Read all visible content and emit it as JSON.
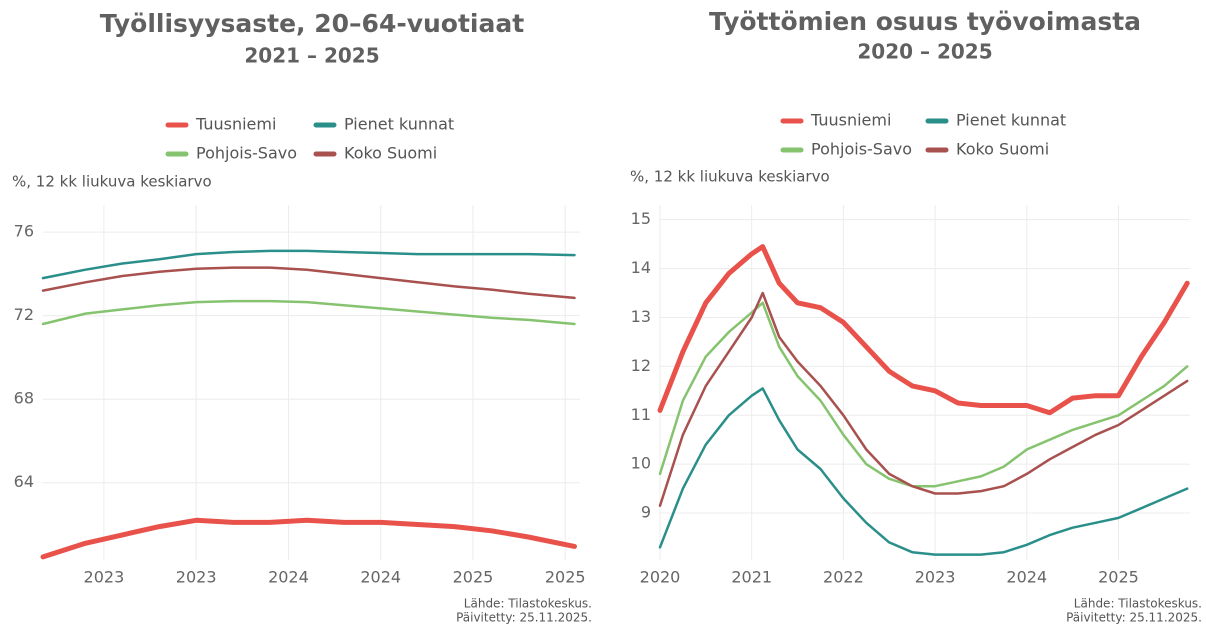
{
  "chart_data": [
    {
      "type": "line",
      "title": "Työllisyysaste, 20–64-vuotiaat",
      "subtitle": "2021 – 2025",
      "y_label": "%, 12 kk liukuva keskiarvo",
      "source": [
        "Lähde: Tilastokeskus.",
        "Päivitetty: 25.11.2025."
      ],
      "x": [
        2022.67,
        2022.9,
        2023.1,
        2023.3,
        2023.5,
        2023.7,
        2023.9,
        2024.1,
        2024.3,
        2024.5,
        2024.7,
        2024.9,
        2025.1,
        2025.3,
        2025.55
      ],
      "xlim": [
        2022.67,
        2025.58
      ],
      "xticks": [
        {
          "value": 2023,
          "label": "2023"
        },
        {
          "value": 2023.5,
          "label": "2023"
        },
        {
          "value": 2024,
          "label": "2024"
        },
        {
          "value": 2024.5,
          "label": "2024"
        },
        {
          "value": 2025,
          "label": "2025"
        },
        {
          "value": 2025.5,
          "label": "2025"
        }
      ],
      "ylim": [
        60.3,
        77.3
      ],
      "yticks": [
        64,
        68,
        72,
        76
      ],
      "grid": true,
      "series": [
        {
          "name": "Tuusniemi",
          "color": "#e8524b",
          "line_width": 5,
          "values": [
            60.45,
            61.1,
            61.5,
            61.9,
            62.2,
            62.1,
            62.1,
            62.2,
            62.1,
            62.1,
            62.0,
            61.9,
            61.7,
            61.4,
            60.95
          ]
        },
        {
          "name": "Pienet kunnat",
          "color": "#2a8f8a",
          "line_width": 2.5,
          "values": [
            73.8,
            74.2,
            74.5,
            74.7,
            74.95,
            75.05,
            75.1,
            75.1,
            75.05,
            75.0,
            74.95,
            74.95,
            74.95,
            74.95,
            74.9
          ]
        },
        {
          "name": "Pohjois-Savo",
          "color": "#86c36f",
          "line_width": 2.5,
          "values": [
            71.6,
            72.1,
            72.3,
            72.5,
            72.65,
            72.7,
            72.7,
            72.65,
            72.5,
            72.35,
            72.2,
            72.05,
            71.9,
            71.8,
            71.6
          ]
        },
        {
          "name": "Koko Suomi",
          "color": "#a8514f",
          "line_width": 2.5,
          "values": [
            73.2,
            73.6,
            73.9,
            74.1,
            74.25,
            74.3,
            74.3,
            74.2,
            74.0,
            73.8,
            73.6,
            73.4,
            73.25,
            73.05,
            72.85
          ]
        }
      ]
    },
    {
      "type": "line",
      "title": "Työttömien osuus työvoimasta",
      "subtitle": "2020 – 2025",
      "y_label": "%, 12 kk liukuva keskiarvo",
      "source": [
        "Lähde: Tilastokeskus.",
        "Päivitetty: 25.11.2025."
      ],
      "x": [
        2020,
        2020.25,
        2020.5,
        2020.75,
        2021,
        2021.12,
        2021.3,
        2021.5,
        2021.75,
        2022,
        2022.25,
        2022.5,
        2022.75,
        2023,
        2023.25,
        2023.5,
        2023.75,
        2024,
        2024.25,
        2024.5,
        2024.75,
        2025,
        2025.25,
        2025.5,
        2025.75
      ],
      "xlim": [
        2020,
        2025.78
      ],
      "xticks": [
        2020,
        2021,
        2022,
        2023,
        2024,
        2025
      ],
      "ylim": [
        8.04,
        15.3
      ],
      "yticks": [
        9,
        10,
        11,
        12,
        13,
        14,
        15
      ],
      "grid": true,
      "series": [
        {
          "name": "Tuusniemi",
          "color": "#e8524b",
          "line_width": 5,
          "values": [
            11.1,
            12.3,
            13.3,
            13.9,
            14.3,
            14.45,
            13.7,
            13.3,
            13.2,
            12.9,
            12.4,
            11.9,
            11.6,
            11.5,
            11.25,
            11.2,
            11.2,
            11.2,
            11.05,
            11.35,
            11.4,
            11.4,
            12.2,
            12.9,
            13.7
          ]
        },
        {
          "name": "Pienet kunnat",
          "color": "#2a8f8a",
          "line_width": 2.5,
          "values": [
            8.3,
            9.5,
            10.4,
            11.0,
            11.4,
            11.55,
            10.9,
            10.3,
            9.9,
            9.3,
            8.8,
            8.4,
            8.2,
            8.15,
            8.15,
            8.15,
            8.2,
            8.35,
            8.55,
            8.7,
            8.8,
            8.9,
            9.1,
            9.3,
            9.5
          ]
        },
        {
          "name": "Pohjois-Savo",
          "color": "#86c36f",
          "line_width": 2.5,
          "values": [
            9.8,
            11.3,
            12.2,
            12.7,
            13.1,
            13.3,
            12.4,
            11.8,
            11.3,
            10.6,
            10.0,
            9.7,
            9.55,
            9.55,
            9.65,
            9.75,
            9.95,
            10.3,
            10.5,
            10.7,
            10.85,
            11.0,
            11.3,
            11.6,
            12.0
          ]
        },
        {
          "name": "Koko Suomi",
          "color": "#a8514f",
          "line_width": 2.5,
          "values": [
            9.15,
            10.6,
            11.6,
            12.3,
            13.0,
            13.5,
            12.6,
            12.1,
            11.6,
            11.0,
            10.3,
            9.8,
            9.55,
            9.4,
            9.4,
            9.45,
            9.55,
            9.8,
            10.1,
            10.35,
            10.6,
            10.8,
            11.1,
            11.4,
            11.7
          ]
        }
      ]
    }
  ]
}
